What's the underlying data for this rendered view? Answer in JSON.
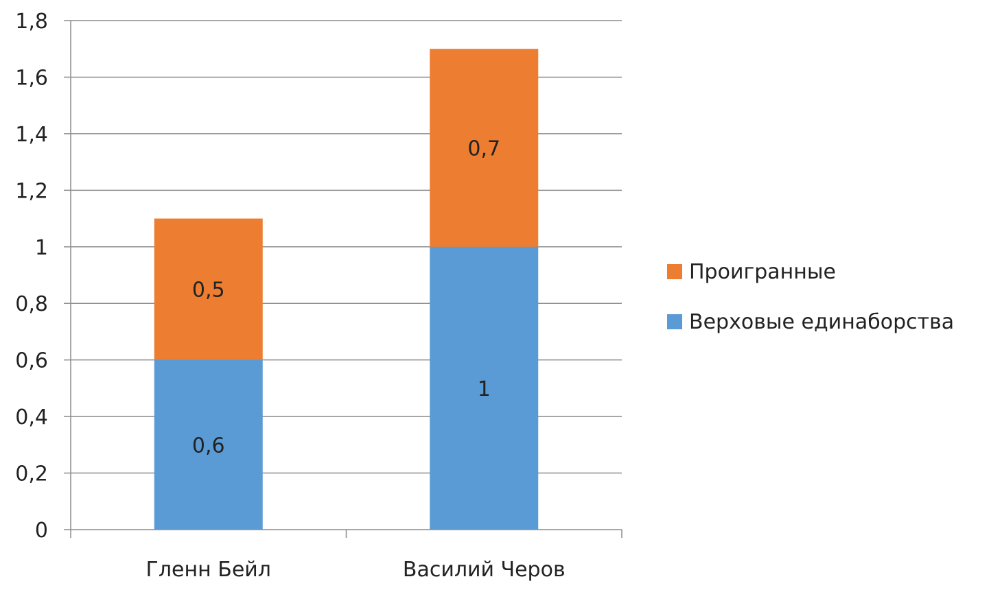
{
  "chart_data": {
    "type": "bar",
    "stacked": true,
    "categories": [
      "Гленн Бейл",
      "Василий Черов"
    ],
    "series": [
      {
        "name": "Верховые единаборства",
        "values": [
          0.6,
          1
        ],
        "labels": [
          "0,6",
          "1"
        ],
        "color": "#5b9bd5"
      },
      {
        "name": "Проигранные",
        "values": [
          0.5,
          0.7
        ],
        "labels": [
          "0,5",
          "0,7"
        ],
        "color": "#ed7d31"
      }
    ],
    "ylim": [
      0,
      1.8
    ],
    "yticks": [
      0,
      0.2,
      0.4,
      0.6,
      0.8,
      1,
      1.2,
      1.4,
      1.6,
      1.8
    ],
    "ytick_labels": [
      "0",
      "0,2",
      "0,4",
      "0,6",
      "0,8",
      "1",
      "1,2",
      "1,4",
      "1,6",
      "1,8"
    ],
    "grid": true,
    "legend_position": "right",
    "legend_order": [
      "Проигранные",
      "Верховые единаборства"
    ]
  }
}
